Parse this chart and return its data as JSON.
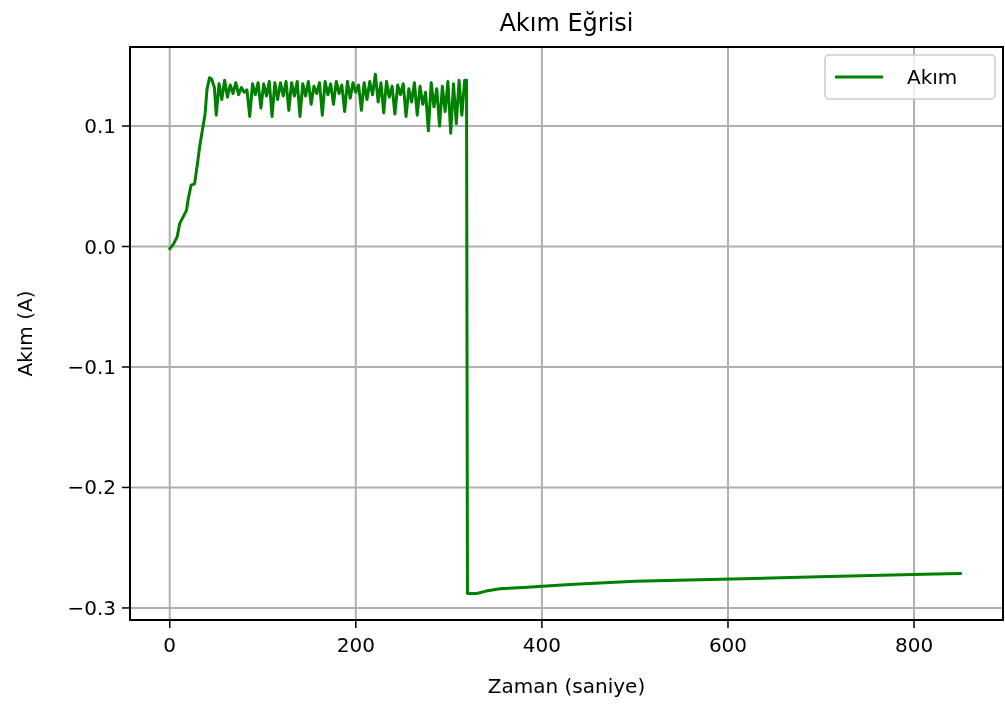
{
  "chart_data": {
    "type": "line",
    "title": "Akım Eğrisi",
    "xlabel": "Zaman (saniye)",
    "ylabel": "Akım (A)",
    "xlim": [
      -42.7,
      895.6
    ],
    "ylim": [
      -0.31,
      0.1656
    ],
    "xticks": [
      0,
      200,
      400,
      600,
      800
    ],
    "yticks": [
      {
        "value": 0.1,
        "label": "0.1"
      },
      {
        "value": 0,
        "label": "0.0"
      },
      {
        "value": -0.1,
        "label": "−0.1"
      },
      {
        "value": -0.2,
        "label": "−0.2"
      },
      {
        "value": -0.3,
        "label": "−0.3"
      }
    ],
    "grid": true,
    "legend": "top right",
    "line_style": "solid",
    "marker": "none",
    "series": [
      {
        "name": "Akım",
        "color": "#008000",
        "x": [
          0,
          4,
          8,
          10.7,
          14,
          18,
          20,
          23,
          26.7,
          30,
          32,
          35,
          38,
          40,
          42.7,
          45,
          48,
          50,
          53,
          56,
          59,
          62,
          65,
          68,
          71,
          74,
          77,
          80,
          83,
          86,
          89,
          92,
          95,
          98,
          101,
          104,
          107,
          110,
          113,
          116,
          119,
          122,
          125,
          128,
          131,
          134,
          137,
          140,
          143,
          146,
          149,
          152,
          155,
          158,
          161,
          164,
          167,
          170,
          173,
          176,
          179,
          182,
          185,
          188,
          191,
          194,
          197,
          200,
          203,
          206,
          209,
          212,
          215,
          218,
          221,
          224,
          227,
          230,
          233,
          236,
          239,
          242,
          245,
          248,
          251,
          254,
          257,
          260,
          263,
          266,
          269,
          272,
          275,
          278,
          281,
          284,
          287,
          290,
          293,
          296,
          299,
          302,
          305,
          308,
          311,
          314,
          317,
          319,
          320,
          321,
          330,
          340,
          355,
          380,
          430,
          500,
          604,
          698,
          810,
          850
        ],
        "values": [
          -0.002,
          0.002,
          0.008,
          0.019,
          0.024,
          0.03,
          0.04,
          0.051,
          0.052,
          0.07,
          0.082,
          0.096,
          0.11,
          0.13,
          0.14,
          0.139,
          0.132,
          0.109,
          0.135,
          0.122,
          0.138,
          0.124,
          0.134,
          0.127,
          0.136,
          0.126,
          0.132,
          0.128,
          0.13,
          0.108,
          0.135,
          0.126,
          0.136,
          0.115,
          0.135,
          0.125,
          0.137,
          0.108,
          0.136,
          0.122,
          0.136,
          0.125,
          0.137,
          0.113,
          0.136,
          0.125,
          0.137,
          0.108,
          0.135,
          0.125,
          0.137,
          0.118,
          0.133,
          0.127,
          0.136,
          0.109,
          0.137,
          0.126,
          0.135,
          0.118,
          0.137,
          0.127,
          0.134,
          0.112,
          0.137,
          0.123,
          0.136,
          0.128,
          0.134,
          0.113,
          0.136,
          0.122,
          0.137,
          0.126,
          0.143,
          0.12,
          0.136,
          0.111,
          0.137,
          0.124,
          0.133,
          0.11,
          0.134,
          0.126,
          0.135,
          0.108,
          0.131,
          0.12,
          0.136,
          0.109,
          0.133,
          0.118,
          0.128,
          0.096,
          0.136,
          0.116,
          0.131,
          0.1,
          0.133,
          0.112,
          0.137,
          0.094,
          0.135,
          0.102,
          0.138,
          0.109,
          0.138,
          0.138,
          -0.288,
          -0.288,
          -0.288,
          -0.286,
          -0.284,
          -0.283,
          -0.2805,
          -0.2778,
          -0.276,
          -0.274,
          -0.272,
          -0.2715
        ]
      }
    ]
  }
}
